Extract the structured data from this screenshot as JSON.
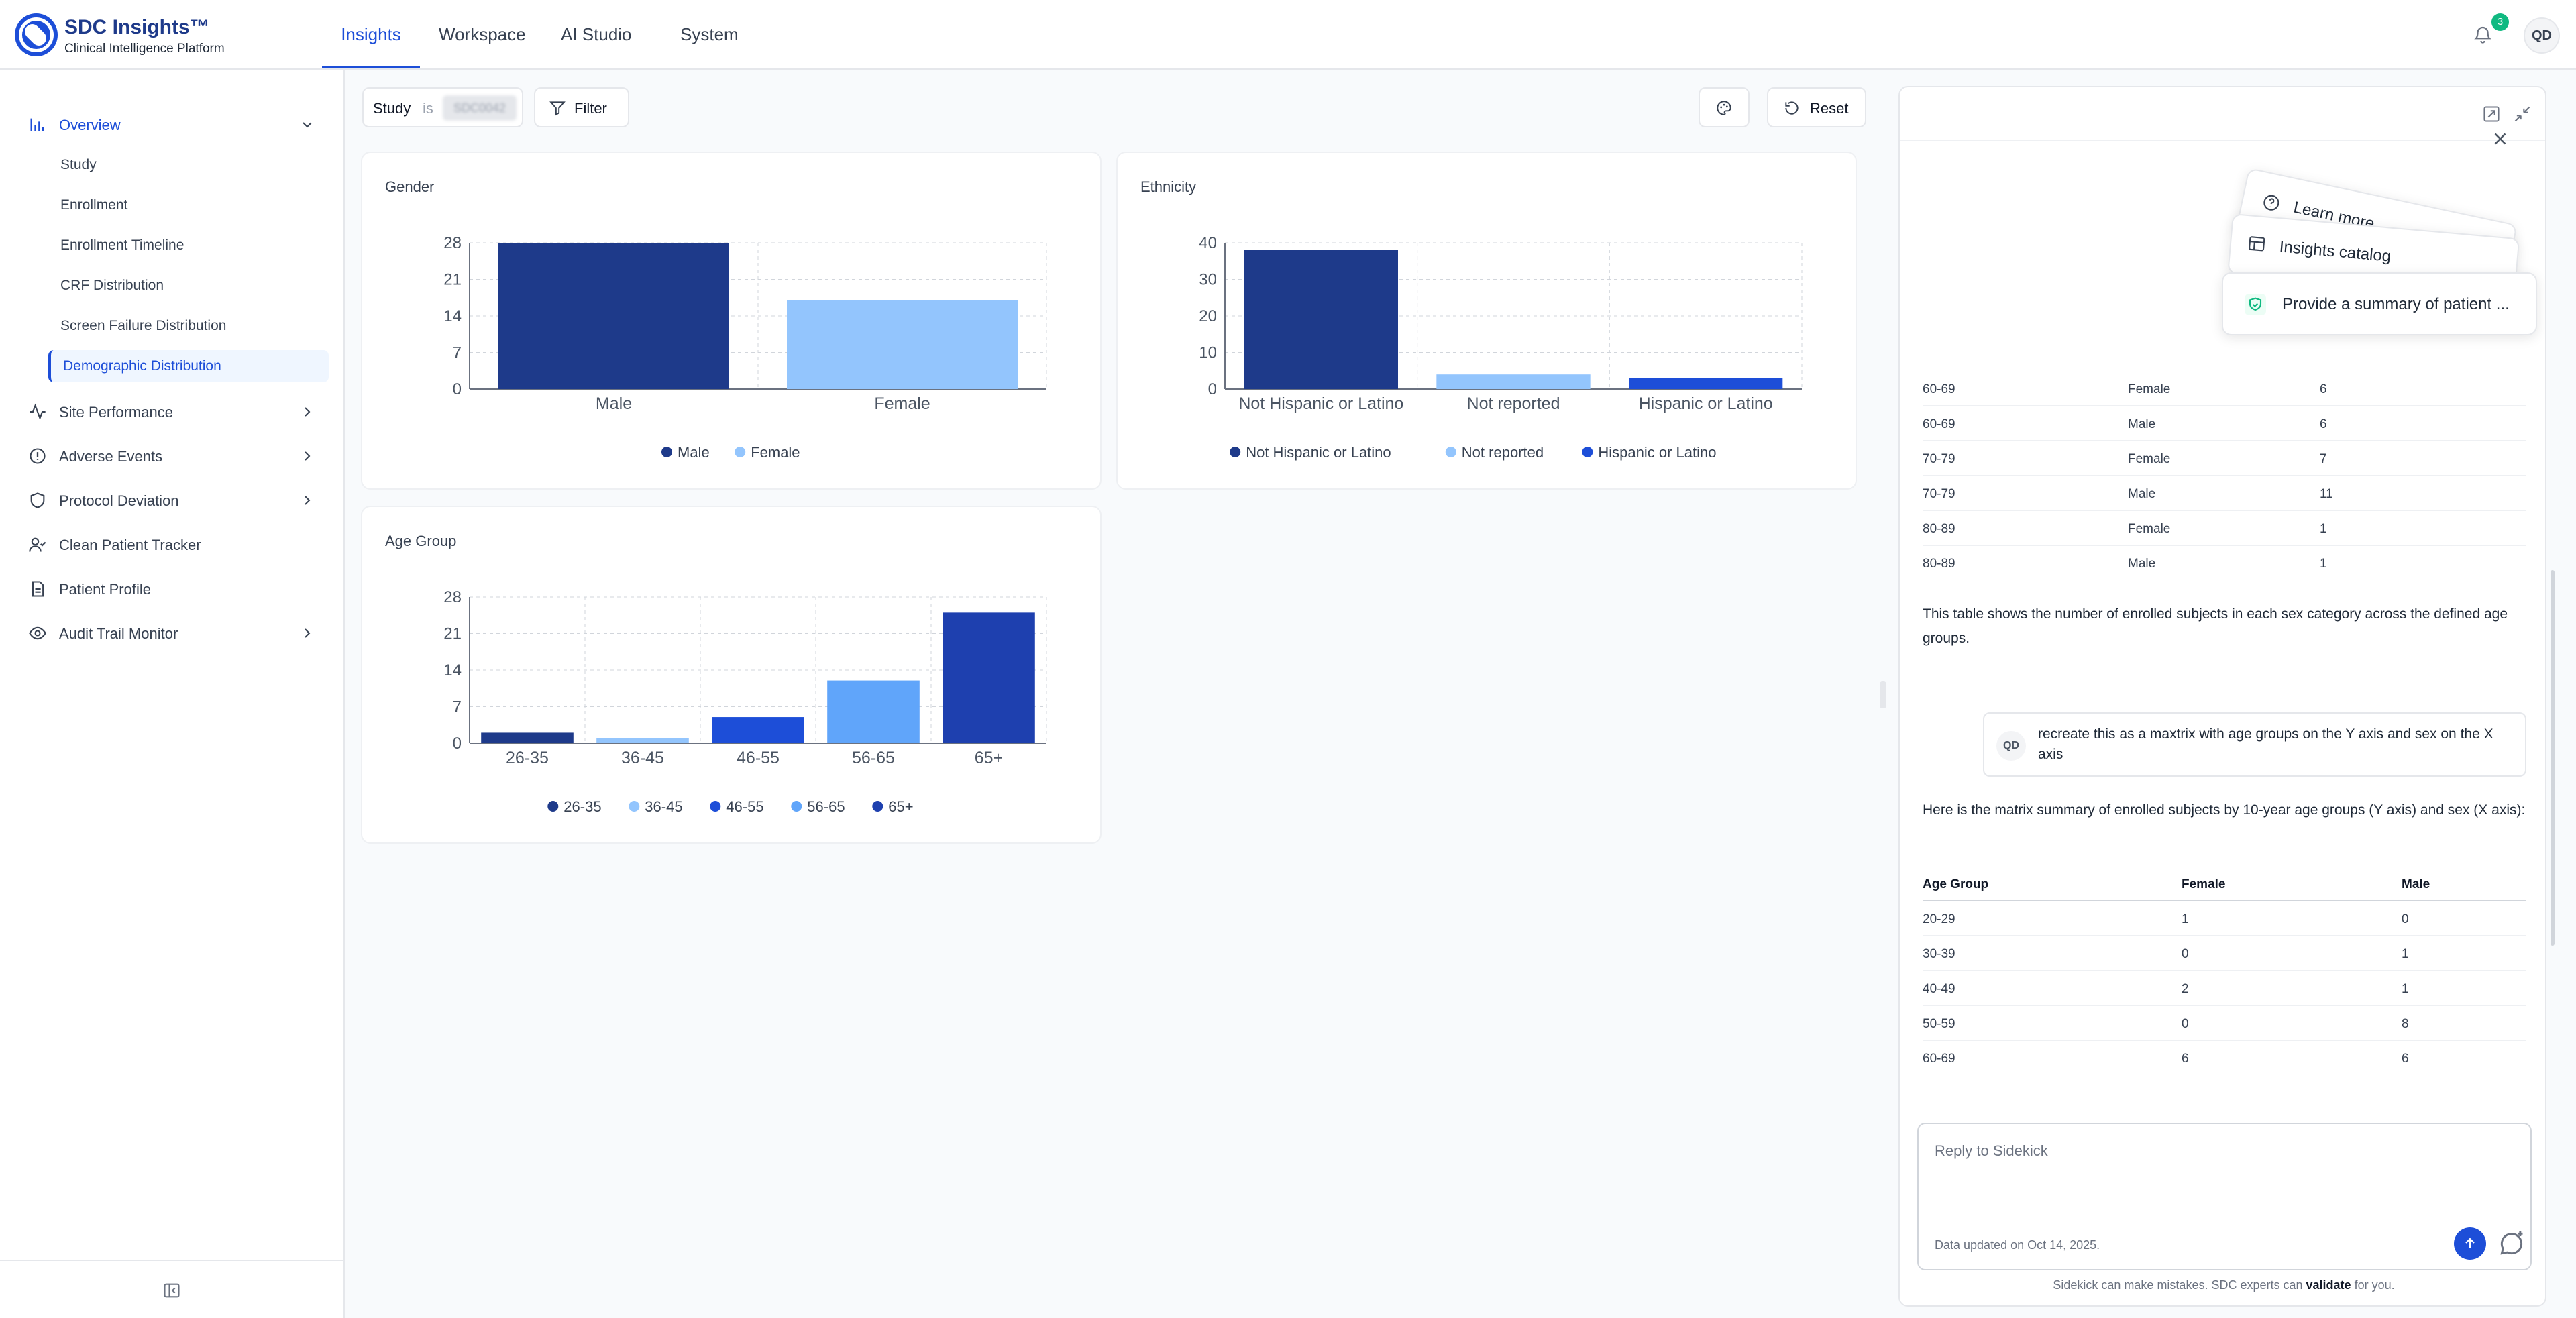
{
  "header": {
    "brand_title": "SDC Insights™",
    "brand_subtitle": "Clinical Intelligence Platform",
    "nav": [
      "Insights",
      "Workspace",
      "AI Studio",
      "System"
    ],
    "active_nav": "Insights",
    "notification_count": "3",
    "user_initials": "QD"
  },
  "sidebar": {
    "overview": "Overview",
    "overview_items": [
      "Study",
      "Enrollment",
      "Enrollment Timeline",
      "CRF Distribution",
      "Screen Failure Distribution",
      "Demographic Distribution"
    ],
    "active_item": "Demographic Distribution",
    "items": [
      "Site Performance",
      "Adverse Events",
      "Protocol Deviation",
      "Clean Patient Tracker",
      "Patient Profile",
      "Audit Trail Monitor"
    ]
  },
  "toolbar": {
    "filter_key": "Study",
    "filter_op": "is",
    "filter_value": "SDC0042",
    "filter_label": "Filter",
    "reset_label": "Reset"
  },
  "chart_data": [
    {
      "type": "bar",
      "title": "Gender",
      "categories": [
        "Male",
        "Female"
      ],
      "values": [
        28,
        17
      ],
      "yticks": [
        0,
        7,
        14,
        21,
        28
      ],
      "ylim": [
        0,
        28
      ],
      "legend": [
        "Male",
        "Female"
      ],
      "colors": [
        "#1e3a8a",
        "#93c5fd"
      ],
      "grid": true,
      "legend_position": "bottom"
    },
    {
      "type": "bar",
      "title": "Ethnicity",
      "categories": [
        "Not Hispanic or Latino",
        "Not reported",
        "Hispanic or Latino"
      ],
      "values": [
        38,
        4,
        3
      ],
      "yticks": [
        0,
        10,
        20,
        30,
        40
      ],
      "ylim": [
        0,
        40
      ],
      "legend": [
        "Not Hispanic or Latino",
        "Not reported",
        "Hispanic or Latino"
      ],
      "colors": [
        "#1e3a8a",
        "#93c5fd",
        "#1d4ed8"
      ],
      "grid": true,
      "legend_position": "bottom"
    },
    {
      "type": "bar",
      "title": "Age Group",
      "categories": [
        "26-35",
        "36-45",
        "46-55",
        "56-65",
        "65+"
      ],
      "values": [
        2,
        1,
        5,
        12,
        25
      ],
      "yticks": [
        0,
        7,
        14,
        21,
        28
      ],
      "ylim": [
        0,
        28
      ],
      "legend": [
        "26-35",
        "36-45",
        "46-55",
        "56-65",
        "65+"
      ],
      "colors": [
        "#1e3a8a",
        "#93c5fd",
        "#1d4ed8",
        "#60a5fa",
        "#1e40af"
      ],
      "grid": true,
      "legend_position": "bottom"
    }
  ],
  "sidekick": {
    "suggestions": [
      "Learn more",
      "Insights catalog",
      "Provide a summary of patient ..."
    ],
    "table1_rows": [
      [
        "60-69",
        "Female",
        "6"
      ],
      [
        "60-69",
        "Male",
        "6"
      ],
      [
        "70-79",
        "Female",
        "7"
      ],
      [
        "70-79",
        "Male",
        "11"
      ],
      [
        "80-89",
        "Female",
        "1"
      ],
      [
        "80-89",
        "Male",
        "1"
      ]
    ],
    "table1_note": "This table shows the number of enrolled subjects in each sex category across the defined age groups.",
    "user_initials": "QD",
    "user_message": "recreate this as a maxtrix with age groups on the Y axis and sex on the X axis",
    "reply_intro": "Here is the matrix summary of enrolled subjects by 10-year age groups (Y axis) and sex (X axis):",
    "matrix_headers": [
      "Age Group",
      "Female",
      "Male"
    ],
    "matrix_rows": [
      [
        "20-29",
        "1",
        "0"
      ],
      [
        "30-39",
        "0",
        "1"
      ],
      [
        "40-49",
        "2",
        "1"
      ],
      [
        "50-59",
        "0",
        "8"
      ],
      [
        "60-69",
        "6",
        "6"
      ]
    ],
    "reply_placeholder": "Reply to Sidekick",
    "data_updated": "Data updated on Oct 14, 2025.",
    "disclaimer_pre": "Sidekick can make mistakes. SDC experts can",
    "disclaimer_link": "validate",
    "disclaimer_post": "for you."
  }
}
